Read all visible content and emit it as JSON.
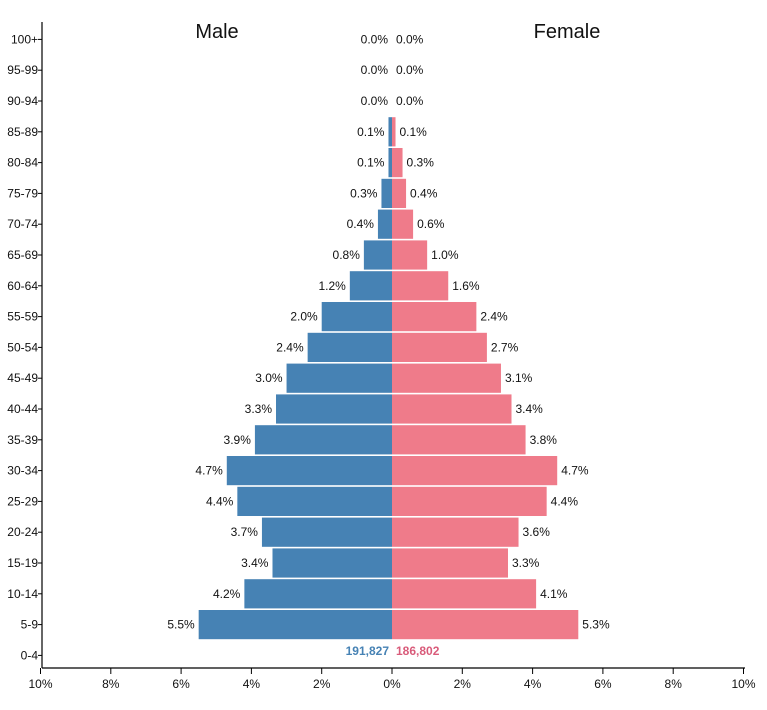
{
  "chart_data": {
    "type": "bar",
    "orientation": "horizontal",
    "layout": "population-pyramid",
    "categories": [
      "100+",
      "95-99",
      "90-94",
      "85-89",
      "80-84",
      "75-79",
      "70-74",
      "65-69",
      "60-64",
      "55-59",
      "50-54",
      "45-49",
      "40-44",
      "35-39",
      "30-34",
      "25-29",
      "20-24",
      "15-19",
      "10-14",
      "5-9",
      "0-4"
    ],
    "series": [
      {
        "name": "Male",
        "color": "#4682b4",
        "values": [
          0.0,
          0.0,
          0.0,
          0.1,
          0.1,
          0.3,
          0.4,
          0.8,
          1.2,
          2.0,
          2.4,
          3.0,
          3.3,
          3.9,
          4.7,
          4.4,
          3.7,
          3.4,
          4.2,
          5.5,
          null
        ],
        "labels": [
          "0.0%",
          "0.0%",
          "0.0%",
          "0.1%",
          "0.1%",
          "0.3%",
          "0.4%",
          "0.8%",
          "1.2%",
          "2.0%",
          "2.4%",
          "3.0%",
          "3.3%",
          "3.9%",
          "4.7%",
          "4.4%",
          "3.7%",
          "3.4%",
          "4.2%",
          "5.5%",
          ""
        ],
        "total": "191,827"
      },
      {
        "name": "Female",
        "color": "#ef7b8a",
        "total_color": "#d95b7a",
        "values": [
          0.0,
          0.0,
          0.0,
          0.1,
          0.3,
          0.4,
          0.6,
          1.0,
          1.6,
          2.4,
          2.7,
          3.1,
          3.4,
          3.8,
          4.7,
          4.4,
          3.6,
          3.3,
          4.1,
          5.3,
          null
        ],
        "labels": [
          "0.0%",
          "0.0%",
          "0.0%",
          "0.1%",
          "0.3%",
          "0.4%",
          "0.6%",
          "1.0%",
          "1.6%",
          "2.4%",
          "2.7%",
          "3.1%",
          "3.4%",
          "3.8%",
          "4.7%",
          "4.4%",
          "3.6%",
          "3.3%",
          "4.1%",
          "5.3%",
          ""
        ],
        "total": "186,802"
      }
    ],
    "x_range": [
      -10,
      10
    ],
    "x_ticks": [
      -10,
      -8,
      -6,
      -4,
      -2,
      0,
      2,
      4,
      6,
      8,
      10
    ],
    "x_tick_labels": [
      "10%",
      "8%",
      "6%",
      "4%",
      "2%",
      "0%",
      "2%",
      "4%",
      "6%",
      "8%",
      "10%"
    ],
    "grid": false,
    "legend": "none"
  }
}
